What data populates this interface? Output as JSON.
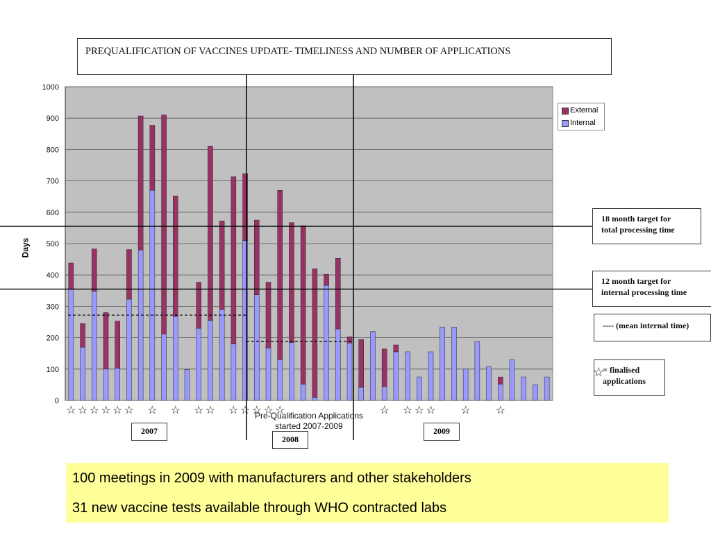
{
  "title": "PREQUALIFICATION OF VACCINES UPDATE- TIMELINESS AND NUMBER OF APPLICATIONS",
  "notes": {
    "target18_line1": "18 month target for",
    "target18_line2": "total processing time",
    "target12_line1": "12 month target for",
    "target12_line2": "internal processing time",
    "mean_internal": "---- (mean internal time)",
    "finalised_line1": "= finalised",
    "finalised_line2": "applications"
  },
  "years": [
    "2007",
    "2008",
    "2009"
  ],
  "pq_caption_line1": "Pre-Qualification Applications",
  "pq_caption_line2": "started 2007-2009",
  "bottom": {
    "line1": "100 meetings in 2009 with manufacturers and other stakeholders",
    "line2": "31 new vaccine tests available through WHO contracted labs"
  },
  "colors": {
    "external": "#993366",
    "internal": "#9999ff",
    "plot_bg": "#c0c0c0",
    "highlight": "#ffff99"
  },
  "chart_data": {
    "type": "bar",
    "stacked": true,
    "ylabel": "Days",
    "xlabel": "",
    "ylim": [
      0,
      1000
    ],
    "yticks": [
      0,
      100,
      200,
      300,
      400,
      500,
      600,
      700,
      800,
      900,
      1000
    ],
    "grid": true,
    "legend_position": "top-right",
    "series": [
      {
        "name": "Internal",
        "values": [
          355,
          170,
          348,
          100,
          103,
          323,
          480,
          670,
          212,
          268,
          98,
          230,
          255,
          290,
          180,
          510,
          337,
          167,
          130,
          185,
          52,
          10,
          367,
          228,
          183,
          42,
          220,
          44,
          155,
          155,
          75,
          155,
          234,
          234,
          100,
          188,
          108,
          52,
          130,
          75,
          50,
          75
        ]
      },
      {
        "name": "External",
        "values": [
          83,
          75,
          135,
          180,
          150,
          158,
          427,
          207,
          698,
          384,
          0,
          147,
          556,
          282,
          533,
          213,
          238,
          210,
          540,
          382,
          505,
          410,
          35,
          225,
          20,
          152,
          0,
          120,
          22,
          0,
          0,
          0,
          0,
          0,
          0,
          0,
          0,
          23,
          0,
          0,
          0,
          0
        ]
      }
    ],
    "finalised_bars": [
      0,
      1,
      2,
      3,
      4,
      5,
      7,
      9,
      11,
      12,
      14,
      15,
      16,
      17,
      18,
      27,
      29,
      30,
      31,
      34,
      37
    ],
    "reference_lines": [
      {
        "label": "18 month target for total processing time",
        "value": 555
      },
      {
        "label": "12 month target for internal processing time",
        "value": 355
      }
    ],
    "mean_internal_lines": [
      {
        "period": "2007",
        "value": 272
      },
      {
        "period": "2008",
        "value": 188
      }
    ]
  }
}
